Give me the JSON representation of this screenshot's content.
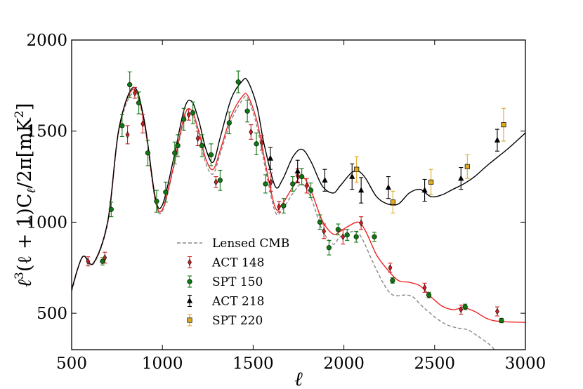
{
  "chart_data": {
    "type": "line",
    "xlabel": "ℓ",
    "ylabel_parts": [
      "ℓ",
      "3",
      "(ℓ + 1)C",
      "ℓ",
      "/2π[mK",
      "2",
      "]"
    ],
    "xlim": [
      500,
      3000
    ],
    "ylim": [
      300,
      2000
    ],
    "xticks": [
      500,
      1000,
      1500,
      2000,
      2500,
      3000
    ],
    "yticks": [
      500,
      1000,
      1500,
      2000
    ],
    "grid": false,
    "legend_position": "center-left",
    "legend": [
      {
        "label": "Lensed CMB",
        "kind": "dashed-line",
        "color": "#888888"
      },
      {
        "label": "ACT 148",
        "kind": "diamond",
        "color": "#cc2222"
      },
      {
        "label": "SPT 150",
        "kind": "circle",
        "color": "#117711"
      },
      {
        "label": "ACT 218",
        "kind": "triangle",
        "color": "#000000"
      },
      {
        "label": "SPT 220",
        "kind": "square",
        "color": "#ddaa22"
      }
    ],
    "curves": [
      {
        "name": "Lensed CMB",
        "style": "dashed",
        "color": "#888888",
        "points": [
          [
            500,
            620
          ],
          [
            560,
            808
          ],
          [
            620,
            770
          ],
          [
            700,
            1000
          ],
          [
            760,
            1500
          ],
          [
            840,
            1710
          ],
          [
            900,
            1540
          ],
          [
            960,
            1120
          ],
          [
            1000,
            1060
          ],
          [
            1060,
            1290
          ],
          [
            1120,
            1560
          ],
          [
            1160,
            1590
          ],
          [
            1200,
            1480
          ],
          [
            1240,
            1320
          ],
          [
            1280,
            1265
          ],
          [
            1320,
            1380
          ],
          [
            1380,
            1560
          ],
          [
            1440,
            1670
          ],
          [
            1470,
            1680
          ],
          [
            1520,
            1530
          ],
          [
            1560,
            1330
          ],
          [
            1620,
            1060
          ],
          [
            1660,
            1070
          ],
          [
            1720,
            1160
          ],
          [
            1770,
            1210
          ],
          [
            1820,
            1130
          ],
          [
            1880,
            960
          ],
          [
            1940,
            880
          ],
          [
            1980,
            920
          ],
          [
            2060,
            950
          ],
          [
            2100,
            910
          ],
          [
            2160,
            780
          ],
          [
            2220,
            660
          ],
          [
            2270,
            600
          ],
          [
            2340,
            600
          ],
          [
            2380,
            590
          ],
          [
            2430,
            540
          ],
          [
            2500,
            480
          ],
          [
            2560,
            440
          ],
          [
            2620,
            420
          ],
          [
            2680,
            410
          ],
          [
            2730,
            380
          ],
          [
            2800,
            330
          ],
          [
            2830,
            300
          ]
        ]
      },
      {
        "name": "ACT 148 model",
        "style": "solid",
        "color": "#ee2222",
        "points": [
          [
            500,
            630
          ],
          [
            560,
            810
          ],
          [
            620,
            775
          ],
          [
            700,
            1010
          ],
          [
            760,
            1510
          ],
          [
            840,
            1730
          ],
          [
            900,
            1550
          ],
          [
            960,
            1130
          ],
          [
            1000,
            1070
          ],
          [
            1060,
            1300
          ],
          [
            1120,
            1580
          ],
          [
            1160,
            1615
          ],
          [
            1200,
            1500
          ],
          [
            1240,
            1345
          ],
          [
            1280,
            1290
          ],
          [
            1320,
            1400
          ],
          [
            1380,
            1585
          ],
          [
            1440,
            1690
          ],
          [
            1470,
            1695
          ],
          [
            1520,
            1560
          ],
          [
            1560,
            1360
          ],
          [
            1620,
            1085
          ],
          [
            1660,
            1100
          ],
          [
            1720,
            1195
          ],
          [
            1770,
            1250
          ],
          [
            1820,
            1170
          ],
          [
            1880,
            1010
          ],
          [
            1940,
            935
          ],
          [
            1980,
            950
          ],
          [
            2020,
            975
          ],
          [
            2080,
            1000
          ],
          [
            2120,
            950
          ],
          [
            2180,
            820
          ],
          [
            2240,
            740
          ],
          [
            2300,
            680
          ],
          [
            2360,
            670
          ],
          [
            2420,
            650
          ],
          [
            2480,
            590
          ],
          [
            2540,
            540
          ],
          [
            2600,
            520
          ],
          [
            2660,
            530
          ],
          [
            2720,
            510
          ],
          [
            2790,
            470
          ],
          [
            2860,
            455
          ],
          [
            3000,
            450
          ]
        ]
      },
      {
        "name": "ACT 218 model",
        "style": "solid",
        "color": "#000000",
        "points": [
          [
            500,
            630
          ],
          [
            560,
            810
          ],
          [
            620,
            775
          ],
          [
            700,
            1010
          ],
          [
            760,
            1510
          ],
          [
            840,
            1740
          ],
          [
            900,
            1560
          ],
          [
            960,
            1140
          ],
          [
            1000,
            1095
          ],
          [
            1060,
            1340
          ],
          [
            1120,
            1620
          ],
          [
            1160,
            1665
          ],
          [
            1200,
            1560
          ],
          [
            1240,
            1400
          ],
          [
            1280,
            1330
          ],
          [
            1320,
            1470
          ],
          [
            1380,
            1680
          ],
          [
            1440,
            1775
          ],
          [
            1470,
            1775
          ],
          [
            1520,
            1640
          ],
          [
            1560,
            1430
          ],
          [
            1620,
            1200
          ],
          [
            1660,
            1230
          ],
          [
            1720,
            1360
          ],
          [
            1770,
            1400
          ],
          [
            1820,
            1330
          ],
          [
            1880,
            1200
          ],
          [
            1940,
            1160
          ],
          [
            1980,
            1200
          ],
          [
            2040,
            1270
          ],
          [
            2080,
            1280
          ],
          [
            2120,
            1240
          ],
          [
            2180,
            1140
          ],
          [
            2240,
            1100
          ],
          [
            2300,
            1100
          ],
          [
            2360,
            1160
          ],
          [
            2420,
            1180
          ],
          [
            2480,
            1140
          ],
          [
            2540,
            1150
          ],
          [
            2600,
            1180
          ],
          [
            2660,
            1210
          ],
          [
            2720,
            1250
          ],
          [
            2800,
            1320
          ],
          [
            2900,
            1400
          ],
          [
            3000,
            1490
          ]
        ]
      }
    ],
    "series": [
      {
        "name": "ACT 148",
        "marker": "diamond",
        "color": "#cc2222",
        "points": [
          [
            590,
            785,
            25
          ],
          [
            683,
            805,
            30
          ],
          [
            808,
            1480,
            50
          ],
          [
            848,
            1710,
            30
          ],
          [
            892,
            1540,
            50
          ],
          [
            1145,
            1590,
            30
          ],
          [
            1195,
            1460,
            40
          ],
          [
            1295,
            1220,
            30
          ],
          [
            1488,
            1495,
            40
          ],
          [
            1548,
            1435,
            40
          ],
          [
            1598,
            1220,
            50
          ],
          [
            1642,
            1085,
            30
          ],
          [
            1745,
            1255,
            40
          ],
          [
            1795,
            1200,
            40
          ],
          [
            1890,
            950,
            40
          ],
          [
            1995,
            920,
            40
          ],
          [
            2095,
            995,
            35
          ],
          [
            2255,
            750,
            25
          ],
          [
            2445,
            640,
            25
          ],
          [
            2645,
            520,
            25
          ],
          [
            2845,
            510,
            25
          ]
        ]
      },
      {
        "name": "SPT 150",
        "marker": "circle",
        "color": "#117711",
        "points": [
          [
            670,
            785,
            20
          ],
          [
            718,
            1070,
            40
          ],
          [
            778,
            1530,
            60
          ],
          [
            820,
            1755,
            70
          ],
          [
            870,
            1655,
            60
          ],
          [
            920,
            1380,
            70
          ],
          [
            968,
            1115,
            60
          ],
          [
            1018,
            1165,
            55
          ],
          [
            1068,
            1380,
            60
          ],
          [
            1085,
            1420,
            60
          ],
          [
            1118,
            1565,
            60
          ],
          [
            1168,
            1600,
            60
          ],
          [
            1218,
            1420,
            60
          ],
          [
            1268,
            1370,
            60
          ],
          [
            1318,
            1230,
            55
          ],
          [
            1368,
            1545,
            60
          ],
          [
            1418,
            1770,
            60
          ],
          [
            1468,
            1610,
            60
          ],
          [
            1518,
            1430,
            60
          ],
          [
            1568,
            1210,
            50
          ],
          [
            1668,
            1090,
            40
          ],
          [
            1718,
            1210,
            40
          ],
          [
            1768,
            1250,
            45
          ],
          [
            1818,
            1175,
            40
          ],
          [
            1868,
            1000,
            40
          ],
          [
            1918,
            860,
            40
          ],
          [
            1968,
            960,
            30
          ],
          [
            2018,
            930,
            30
          ],
          [
            2068,
            920,
            30
          ],
          [
            2168,
            920,
            25
          ],
          [
            2268,
            680,
            15
          ],
          [
            2468,
            600,
            15
          ],
          [
            2668,
            535,
            15
          ],
          [
            2868,
            460,
            12
          ]
        ]
      },
      {
        "name": "ACT 218",
        "marker": "triangle",
        "color": "#000000",
        "points": [
          [
            1595,
            1350,
            60
          ],
          [
            1745,
            1280,
            60
          ],
          [
            1895,
            1230,
            60
          ],
          [
            2045,
            1250,
            70
          ],
          [
            2095,
            1175,
            70
          ],
          [
            2245,
            1190,
            60
          ],
          [
            2445,
            1175,
            60
          ],
          [
            2645,
            1240,
            60
          ],
          [
            2845,
            1450,
            60
          ]
        ]
      },
      {
        "name": "SPT 220",
        "marker": "square",
        "color": "#ddaa22",
        "points": [
          [
            2070,
            1290,
            70
          ],
          [
            2270,
            1110,
            60
          ],
          [
            2480,
            1220,
            70
          ],
          [
            2680,
            1305,
            65
          ],
          [
            2880,
            1535,
            90
          ]
        ]
      }
    ]
  }
}
